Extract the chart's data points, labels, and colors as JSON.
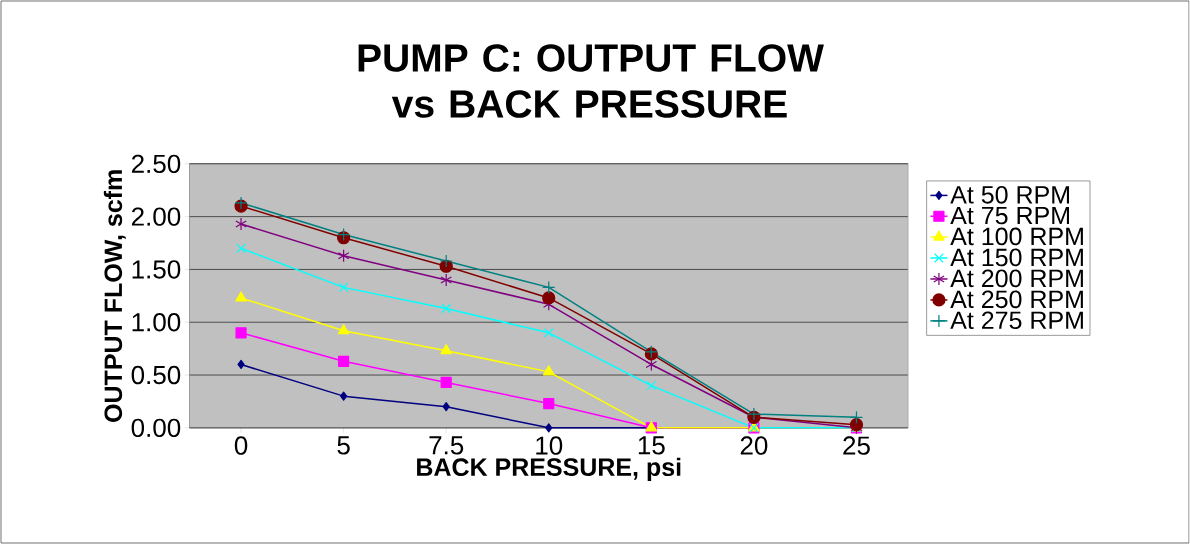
{
  "chart_data": {
    "type": "line",
    "title": "PUMP C: OUTPUT FLOW vs BACK PRESSURE",
    "xlabel": "BACK PRESSURE, psi",
    "ylabel": "OUTPUT FLOW, scfm",
    "categories": [
      "0",
      "5",
      "7.5",
      "10",
      "15",
      "20",
      "25"
    ],
    "series": [
      {
        "name": "At 50 RPM",
        "color": "#000080",
        "marker": "diamond",
        "values": [
          0.6,
          0.3,
          0.2,
          0.0,
          0.0,
          0.0,
          0.0
        ]
      },
      {
        "name": "At 75 RPM",
        "color": "#ff00ff",
        "marker": "square",
        "values": [
          0.9,
          0.63,
          0.43,
          0.23,
          0.0,
          0.0,
          0.0
        ]
      },
      {
        "name": "At 100 RPM",
        "color": "#ffff00",
        "marker": "triangle",
        "values": [
          1.23,
          0.92,
          0.73,
          0.53,
          0.0,
          0.0,
          0.0
        ]
      },
      {
        "name": "At 150 RPM",
        "color": "#00ffff",
        "marker": "x",
        "values": [
          1.7,
          1.33,
          1.13,
          0.9,
          0.4,
          0.0,
          0.0
        ]
      },
      {
        "name": "At 200 RPM",
        "color": "#800080",
        "marker": "cross",
        "values": [
          1.93,
          1.63,
          1.4,
          1.17,
          0.6,
          0.1,
          0.0
        ]
      },
      {
        "name": "At 250 RPM",
        "color": "#800000",
        "marker": "circle",
        "values": [
          2.1,
          1.8,
          1.53,
          1.23,
          0.7,
          0.1,
          0.03
        ]
      },
      {
        "name": "At 275 RPM",
        "color": "#008080",
        "marker": "plus",
        "values": [
          2.13,
          1.83,
          1.58,
          1.33,
          0.72,
          0.13,
          0.1
        ]
      }
    ],
    "ylim": [
      0,
      2.5
    ],
    "yticks": [
      {
        "value": 0,
        "label": "0.00"
      },
      {
        "value": 0.5,
        "label": "0.50"
      },
      {
        "value": 1,
        "label": "1.00"
      },
      {
        "value": 1.5,
        "label": "1.50"
      },
      {
        "value": 2,
        "label": "2.00"
      },
      {
        "value": 2.5,
        "label": "2.50"
      }
    ],
    "grid": "y",
    "legend": "right",
    "line_style": "solid"
  }
}
